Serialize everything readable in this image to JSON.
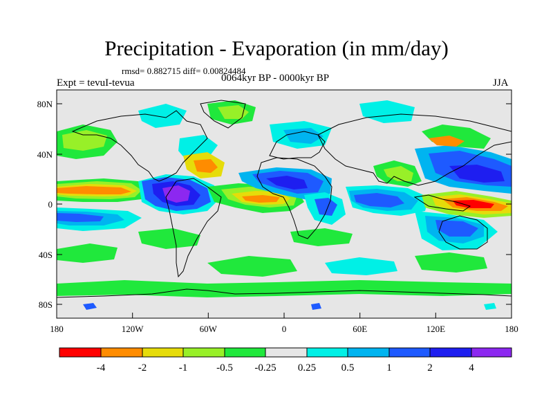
{
  "title": "Precipitation - Evaporation (in mm/day)",
  "stats": "rmsd= 0.882715 diff= 0.00824484",
  "period": "0064kyr BP - 0000kyr BP",
  "experiment": "Expt = tevuI-tevua",
  "season": "JJA",
  "map": {
    "lon_range": [
      -180,
      180
    ],
    "lat_range": [
      -90,
      90
    ],
    "y_tick_labels": [
      "80N",
      "40N",
      "0",
      "40S",
      "80S"
    ],
    "x_tick_labels": [
      "180",
      "120W",
      "60W",
      "0",
      "60E",
      "120E",
      "180"
    ],
    "background_color": "#e6e6e6"
  },
  "colorbar": {
    "colors": [
      "#ff0000",
      "#ff8c00",
      "#e6dc0a",
      "#98f028",
      "#20e83c",
      "#e6e6e6",
      "#00f0e6",
      "#00b4f0",
      "#1e5aff",
      "#1e1ef0",
      "#8c28f0"
    ],
    "labels": [
      "-4",
      "-2",
      "-1",
      "-0.5",
      "-0.25",
      "0.25",
      "0.5",
      "1",
      "2",
      "4"
    ]
  }
}
